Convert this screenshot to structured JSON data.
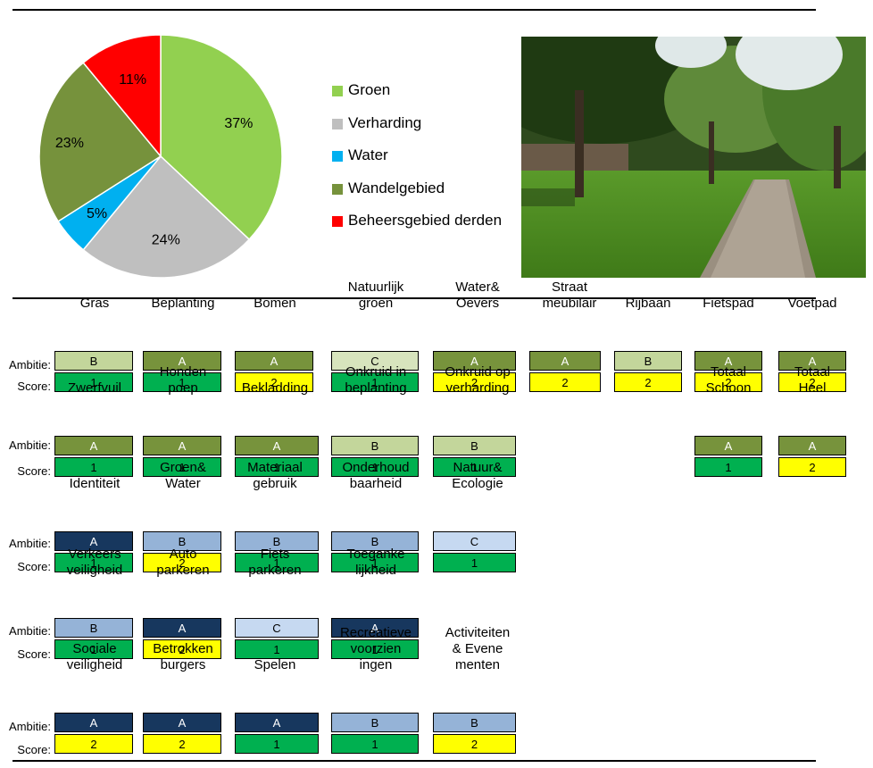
{
  "chart_data": {
    "type": "pie",
    "slices": [
      {
        "label": "Groen",
        "value": 37,
        "display": "37%",
        "color": "#92d050"
      },
      {
        "label": "Verharding",
        "value": 24,
        "display": "24%",
        "color": "#bfbfbf"
      },
      {
        "label": "Water",
        "value": 5,
        "display": "5%",
        "color": "#00b0f0"
      },
      {
        "label": "Wandelgebied",
        "value": 23,
        "display": "23%",
        "color": "#76923c"
      },
      {
        "label": "Beheersgebied derden",
        "value": 11,
        "display": "11%",
        "color": "#ff0000"
      }
    ]
  },
  "labels": {
    "ambitie": "Ambitie:",
    "score": "Score:"
  },
  "photo": {
    "description_icon": "park-photo-icon"
  },
  "colors": {
    "amb_A_green": "#77933c",
    "amb_B_green": "#c3d69b",
    "amb_C_green": "#d7e4bd",
    "amb_A_blue": "#17375e",
    "amb_B_blue": "#95b3d7",
    "amb_C_blue": "#c6d9f1",
    "score_1": "#00b050",
    "score_2": "#ffff00"
  },
  "sections": {
    "schoon": [
      {
        "title": "Gras",
        "ambitie": "B",
        "score": "1"
      },
      {
        "title": "Beplanting",
        "ambitie": "A",
        "score": "1"
      },
      {
        "title": "Bomen",
        "ambitie": "A",
        "score": "2"
      },
      {
        "title": "Natuurlijk\ngroen",
        "ambitie": "C",
        "score": "1"
      },
      {
        "title": "Water&\nOevers",
        "ambitie": "A",
        "score": "2"
      },
      {
        "title": "Straat\nmeubilair",
        "ambitie": "A",
        "score": "2"
      },
      {
        "title": "Rijbaan",
        "ambitie": "B",
        "score": "2"
      },
      {
        "title": "Fietspad",
        "ambitie": "A",
        "score": "2"
      },
      {
        "title": "Voetpad",
        "ambitie": "A",
        "score": "2"
      }
    ],
    "heel": [
      {
        "title": "Zwerfvuil",
        "ambitie": "A",
        "score": "1"
      },
      {
        "title": "Honden\npoep",
        "ambitie": "A",
        "score": "1"
      },
      {
        "title": "Bekladding",
        "ambitie": "A",
        "score": "1"
      },
      {
        "title": "Onkruid in\nbeplanting",
        "ambitie": "B",
        "score": "1"
      },
      {
        "title": "Onkruid op\nverharding",
        "ambitie": "B",
        "score": "1"
      },
      {
        "title": "Totaal\nSchoon",
        "ambitie": "A",
        "score": "1"
      },
      {
        "title": "Totaal\nHeel",
        "ambitie": "A",
        "score": "2"
      }
    ],
    "ruimte": [
      {
        "title": "Identiteit",
        "ambitie": "A",
        "score": "1"
      },
      {
        "title": "Groen&\nWater",
        "ambitie": "B",
        "score": "2"
      },
      {
        "title": "Materiaal\ngebruik",
        "ambitie": "B",
        "score": "1"
      },
      {
        "title": "Onderhoud\nbaarheid",
        "ambitie": "B",
        "score": "1"
      },
      {
        "title": "Natuur&\nEcologie",
        "ambitie": "C",
        "score": "1"
      }
    ],
    "verkeer": [
      {
        "title": "Verkeers\nveiligheid",
        "ambitie": "B",
        "score": "1"
      },
      {
        "title": "Auto\nparkeren",
        "ambitie": "A",
        "score": "2"
      },
      {
        "title": "Fiets\nparkeren",
        "ambitie": "C",
        "score": "1"
      },
      {
        "title": "Toeganke\nlijkheid",
        "ambitie": "A",
        "score": "1"
      }
    ],
    "sociaal": [
      {
        "title": "Sociale\nveiligheid",
        "ambitie": "A",
        "score": "2"
      },
      {
        "title": "Betrokken\nburgers",
        "ambitie": "A",
        "score": "2"
      },
      {
        "title": "Spelen",
        "ambitie": "A",
        "score": "1"
      },
      {
        "title": "Recreatieve\nvoorzien\ningen",
        "ambitie": "B",
        "score": "1"
      },
      {
        "title": "Activiteiten\n& Evene\nmenten",
        "ambitie": "B",
        "score": "2"
      }
    ]
  }
}
